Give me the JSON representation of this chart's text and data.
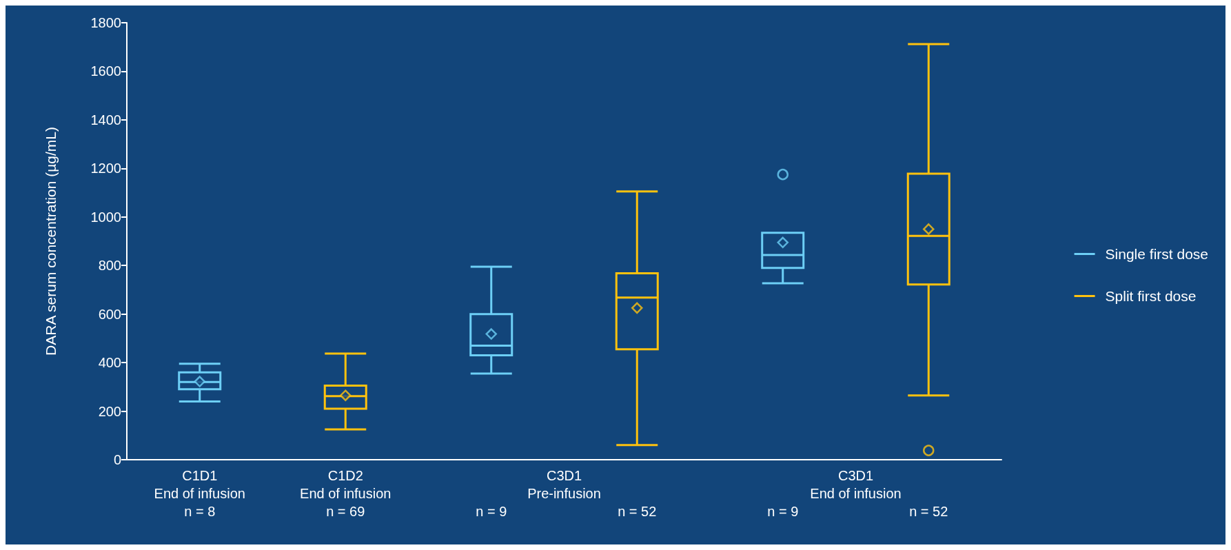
{
  "chart_data": {
    "type": "box",
    "ylabel": "DARA serum concentration (µg/mL)",
    "categories": [
      "C1D1\nEnd of infusion\nn = 8",
      "C1D2\nEnd of infusion\nn = 69",
      "n = 9",
      "n = 52",
      "n = 9",
      "n = 52"
    ],
    "annotations": [
      "C3D1\nPre-infusion",
      "C3D1\nEnd of infusion"
    ],
    "ylim": [
      0,
      1800
    ],
    "yticks": [
      0,
      200,
      400,
      600,
      800,
      1000,
      1200,
      1400,
      1600,
      1800
    ],
    "grid": false,
    "legend": "right",
    "series": [
      {
        "name": "Single first dose",
        "color": "#6dcff6",
        "boxes": [
          {
            "low": 240,
            "q1": 290,
            "median": 320,
            "q3": 360,
            "high": 395,
            "mean": 322
          },
          null,
          {
            "low": 355,
            "q1": 430,
            "median": 470,
            "q3": 600,
            "high": 795,
            "mean": 518
          },
          null,
          {
            "low": 727,
            "q1": 790,
            "median": 843,
            "q3": 935,
            "high": 935,
            "mean": 895,
            "outliers": [
              1175
            ]
          },
          null
        ]
      },
      {
        "name": "Split first dose",
        "color": "#ffc20e",
        "boxes": [
          null,
          {
            "low": 125,
            "q1": 210,
            "median": 262,
            "q3": 305,
            "high": 437,
            "mean": 265
          },
          null,
          {
            "low": 60,
            "q1": 455,
            "median": 668,
            "q3": 768,
            "high": 1105,
            "mean": 625
          },
          null,
          {
            "low": 265,
            "q1": 722,
            "median": 922,
            "q3": 1178,
            "high": 1712,
            "mean": 950,
            "outliers": [
              38
            ]
          }
        ]
      }
    ]
  }
}
